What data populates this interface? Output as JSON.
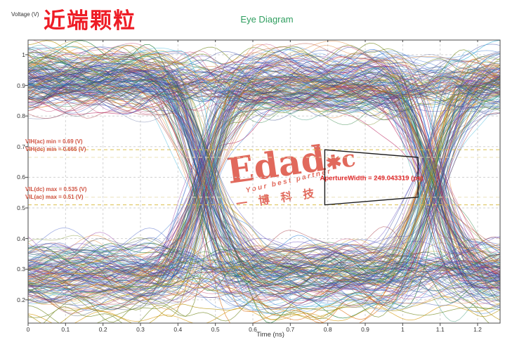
{
  "header": {
    "badge": "近端颗粒",
    "badge_color": "#ee1c25"
  },
  "watermark": {
    "brand_full": "Edadoc",
    "brand_pre": "Edad",
    "brand_star": "✱",
    "brand_post": "c",
    "tagline": "Your best partner",
    "company": "一博科技",
    "color": "#d9402f"
  },
  "chart_data": {
    "type": "line",
    "subtype": "eye_diagram",
    "title": "Eye Diagram",
    "title_color": "#2f9e5f",
    "xlabel": "Time (ns)",
    "ylabel": "Voltage (V)",
    "xlim": [
      0,
      1.26
    ],
    "ylim": [
      0.124,
      1.048
    ],
    "grid": true,
    "x_ticks": [
      0,
      0.1,
      0.2,
      0.3,
      0.4,
      0.5,
      0.6,
      0.7,
      0.8,
      0.9,
      1,
      1.1,
      1.2
    ],
    "x_tick_labels": [
      "0",
      "0.1",
      "0.2",
      "0.3",
      "0.4",
      "0.5",
      "0.6",
      "0.7",
      "0.8",
      "0.9",
      "1",
      "1.1",
      "1.2"
    ],
    "y_ticks": [
      0.2,
      0.3,
      0.4,
      0.5,
      0.6,
      0.7,
      0.8,
      0.9,
      1
    ],
    "y_tick_labels": [
      "0.2",
      "0.3",
      "0.4",
      "0.5",
      "0.6",
      "0.7",
      "0.8",
      "0.9",
      "1"
    ],
    "thresholds": [
      {
        "name": "VIH(ac) min",
        "value": 0.69,
        "label": "VIH(ac) min = 0.69 (V)",
        "style": "gold"
      },
      {
        "name": "VIH(dc) min",
        "value": 0.665,
        "label": "VIH(dc) min = 0.665 (V)",
        "style": "pale"
      },
      {
        "name": "VIL(dc) max",
        "value": 0.535,
        "label": "VIL(dc) max = 0.535 (V)",
        "style": "pale"
      },
      {
        "name": "VIL(ac) max",
        "value": 0.51,
        "label": "VIL(ac) max = 0.51 (V)",
        "style": "gold"
      }
    ],
    "aperture": {
      "label": "ApertureWidth = 249.043319 (ps)",
      "width_ps": 249.043319,
      "mask_polygon_t_v": [
        [
          0.792,
          0.69
        ],
        [
          1.041,
          0.665
        ],
        [
          1.041,
          0.535
        ],
        [
          0.792,
          0.51
        ]
      ]
    },
    "eye": {
      "crossings_ns": [
        0.47,
        1.08
      ],
      "unit_interval_ns": 0.61,
      "high_level_range": [
        0.8,
        1.02
      ],
      "low_level_range": [
        0.17,
        0.4
      ],
      "trace_count": 330,
      "palette": [
        "#23379e",
        "#3a56c4",
        "#2b6fd0",
        "#4a90d9",
        "#35b3d9",
        "#1d9e9e",
        "#2a8f6a",
        "#1f7a33",
        "#7a8f2a",
        "#b8960f",
        "#d9a01f",
        "#e0791f",
        "#b03a20",
        "#9e2430",
        "#c23a6e",
        "#8e2b9e",
        "#5b3fbf",
        "#3d2f8e",
        "#44505c",
        "#6b7aa8",
        "#2b3f9e",
        "#4338b0"
      ],
      "outlier_palette": [
        "#d9a01f",
        "#b8960f",
        "#7a8f2a",
        "#1f7a33",
        "#e0791f"
      ]
    },
    "colors": {
      "grid": "#d2d2d2",
      "frame": "#4a4a4a",
      "gold": "#d9bc45",
      "pale_gold": "#eadfb6",
      "mask": "#1a1a1a",
      "annotation_red": "#e02828",
      "threshold_text": "#d05443"
    }
  }
}
